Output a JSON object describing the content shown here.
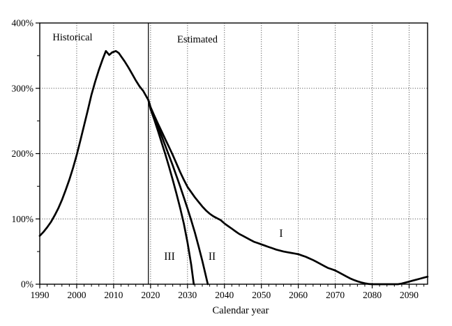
{
  "chart_data": {
    "type": "line",
    "title": "",
    "xlabel": "Calendar year",
    "ylabel": "",
    "x_range": [
      1990,
      2095
    ],
    "y_range": [
      0,
      400
    ],
    "grid": "dotted",
    "x_major_ticks": [
      1990,
      2000,
      2010,
      2020,
      2030,
      2040,
      2050,
      2060,
      2070,
      2080,
      2090
    ],
    "x_minor_tick_step": 2,
    "y_major_ticks": [
      0,
      100,
      200,
      300,
      400
    ],
    "y_minor_ticks": [
      50,
      150,
      250,
      350
    ],
    "y_tick_labels": [
      "0%",
      "100%",
      "200%",
      "300%",
      "400%"
    ],
    "divider_year": 2019.4,
    "annotations": [
      {
        "id": "historical",
        "text": "Historical",
        "year": 1998.9,
        "value": 378
      },
      {
        "id": "estimated",
        "text": "Estimated",
        "year": 2032.7,
        "value": 375
      },
      {
        "id": "scenario-1",
        "text": "I",
        "year": 2055.3,
        "value": 78
      },
      {
        "id": "scenario-2",
        "text": "II",
        "year": 2036.5,
        "value": 42
      },
      {
        "id": "scenario-3",
        "text": "III",
        "year": 2025.2,
        "value": 42
      }
    ],
    "series": [
      {
        "name": "Historical",
        "points": [
          [
            1990,
            74
          ],
          [
            1991,
            80
          ],
          [
            1992,
            87
          ],
          [
            1993,
            95
          ],
          [
            1994,
            105
          ],
          [
            1995,
            116
          ],
          [
            1996,
            129
          ],
          [
            1997,
            144
          ],
          [
            1998,
            160
          ],
          [
            1999,
            178
          ],
          [
            2000,
            198
          ],
          [
            2001,
            220
          ],
          [
            2002,
            243
          ],
          [
            2003,
            266
          ],
          [
            2004,
            290
          ],
          [
            2005,
            310
          ],
          [
            2006,
            328
          ],
          [
            2007,
            344
          ],
          [
            2007.9,
            357
          ],
          [
            2008.8,
            351
          ],
          [
            2009.6,
            355
          ],
          [
            2010.6,
            357
          ],
          [
            2011.4,
            354
          ],
          [
            2012,
            349
          ],
          [
            2013,
            341
          ],
          [
            2014,
            332
          ],
          [
            2015,
            322
          ],
          [
            2016,
            312
          ],
          [
            2017,
            303
          ],
          [
            2018,
            296
          ],
          [
            2019,
            286
          ],
          [
            2019.4,
            282
          ]
        ]
      },
      {
        "name": "I",
        "points": [
          [
            2019.4,
            282
          ],
          [
            2020,
            271
          ],
          [
            2021,
            258
          ],
          [
            2022,
            246
          ],
          [
            2023,
            234
          ],
          [
            2024,
            222
          ],
          [
            2025,
            210
          ],
          [
            2026,
            198
          ],
          [
            2027,
            185
          ],
          [
            2028,
            172
          ],
          [
            2029,
            160
          ],
          [
            2030,
            149
          ],
          [
            2031,
            141
          ],
          [
            2032,
            133
          ],
          [
            2033,
            126
          ],
          [
            2034,
            119
          ],
          [
            2035,
            113
          ],
          [
            2036,
            108
          ],
          [
            2037,
            104
          ],
          [
            2038,
            101
          ],
          [
            2039,
            98
          ],
          [
            2040,
            93
          ],
          [
            2041,
            89
          ],
          [
            2042,
            85
          ],
          [
            2043,
            81
          ],
          [
            2044,
            77
          ],
          [
            2045,
            74
          ],
          [
            2046,
            71
          ],
          [
            2047,
            68
          ],
          [
            2048,
            65
          ],
          [
            2049,
            63
          ],
          [
            2050,
            61
          ],
          [
            2051,
            59
          ],
          [
            2052,
            57
          ],
          [
            2053,
            55
          ],
          [
            2054,
            53
          ],
          [
            2055,
            51.5
          ],
          [
            2056,
            50
          ],
          [
            2057,
            49
          ],
          [
            2058,
            48
          ],
          [
            2059,
            47
          ],
          [
            2060,
            46
          ],
          [
            2061,
            44
          ],
          [
            2062,
            42
          ],
          [
            2063,
            39.5
          ],
          [
            2064,
            37
          ],
          [
            2065,
            34
          ],
          [
            2066,
            31
          ],
          [
            2067,
            28
          ],
          [
            2068,
            25
          ],
          [
            2069,
            23
          ],
          [
            2070,
            21
          ],
          [
            2071,
            18
          ],
          [
            2072,
            15
          ],
          [
            2073,
            12
          ],
          [
            2074,
            9
          ],
          [
            2075,
            6.5
          ],
          [
            2076,
            4.5
          ],
          [
            2077,
            2.8
          ],
          [
            2078,
            1.4
          ],
          [
            2079,
            0.4
          ],
          [
            2080,
            0
          ],
          [
            2083,
            0
          ],
          [
            2087,
            0
          ],
          [
            2088,
            1
          ],
          [
            2089,
            2.5
          ],
          [
            2090,
            4
          ],
          [
            2091,
            5.5
          ],
          [
            2092,
            7
          ],
          [
            2093,
            8.5
          ],
          [
            2094,
            10
          ],
          [
            2095,
            11.5
          ]
        ]
      },
      {
        "name": "II",
        "points": [
          [
            2019.4,
            282
          ],
          [
            2020,
            270
          ],
          [
            2021,
            256
          ],
          [
            2022,
            241
          ],
          [
            2023,
            227
          ],
          [
            2024,
            212
          ],
          [
            2025,
            197
          ],
          [
            2026,
            182
          ],
          [
            2027,
            166
          ],
          [
            2028,
            150
          ],
          [
            2029,
            133
          ],
          [
            2030,
            116
          ],
          [
            2031,
            98
          ],
          [
            2032,
            79
          ],
          [
            2033,
            58
          ],
          [
            2034,
            36
          ],
          [
            2035,
            12
          ],
          [
            2035.5,
            0
          ]
        ]
      },
      {
        "name": "III",
        "points": [
          [
            2019.4,
            282
          ],
          [
            2020,
            268
          ],
          [
            2021,
            252
          ],
          [
            2022,
            235
          ],
          [
            2023,
            217
          ],
          [
            2024,
            199
          ],
          [
            2025,
            180
          ],
          [
            2026,
            160
          ],
          [
            2027,
            139
          ],
          [
            2028,
            117
          ],
          [
            2029,
            93
          ],
          [
            2030,
            64
          ],
          [
            2031,
            30
          ],
          [
            2031.7,
            0
          ]
        ]
      }
    ],
    "colors": {
      "curve": "#000000",
      "grid": "#3d3d3d",
      "frame": "#000000",
      "background": "#ffffff"
    }
  }
}
